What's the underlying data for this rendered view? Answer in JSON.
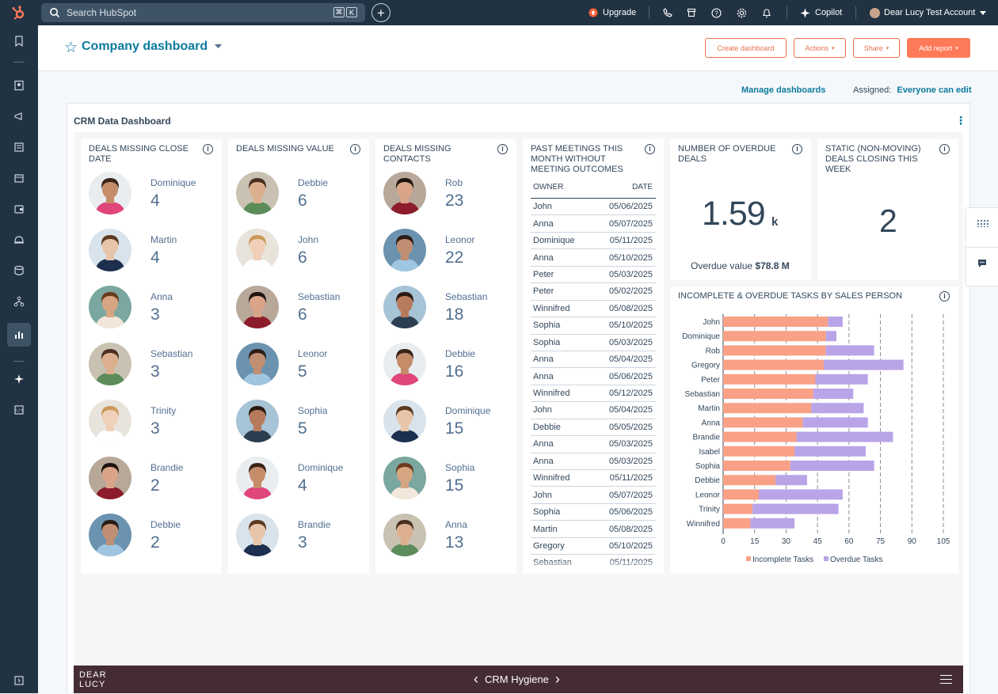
{
  "topbar": {
    "search_placeholder": "Search HubSpot",
    "kbd_cmd": "⌘",
    "kbd_k": "K",
    "plus": "+",
    "upgrade": "Upgrade",
    "copilot": "Copilot",
    "account": "Dear Lucy Test Account"
  },
  "header": {
    "star": "☆",
    "title": "Company dashboard",
    "buttons": {
      "create": "Create dashboard",
      "actions": "Actions",
      "share": "Share",
      "add_report": "Add report"
    }
  },
  "toolbar": {
    "manage": "Manage dashboards",
    "assigned_label": "Assigned:",
    "assigned_value": "Everyone can edit"
  },
  "dashboard": {
    "title": "CRM Data Dashboard",
    "info": "i",
    "kebab": "⋮",
    "cards": {
      "close_date": {
        "title": "Deals missing close date",
        "people": [
          {
            "name": "Dominique",
            "value": "4"
          },
          {
            "name": "Martin",
            "value": "4"
          },
          {
            "name": "Anna",
            "value": "3"
          },
          {
            "name": "Sebastian",
            "value": "3"
          },
          {
            "name": "Trinity",
            "value": "3"
          },
          {
            "name": "Brandie",
            "value": "2"
          },
          {
            "name": "Debbie",
            "value": "2"
          }
        ]
      },
      "value": {
        "title": "Deals missing value",
        "people": [
          {
            "name": "Debbie",
            "value": "6"
          },
          {
            "name": "John",
            "value": "6"
          },
          {
            "name": "Sebastian",
            "value": "6"
          },
          {
            "name": "Leonor",
            "value": "5"
          },
          {
            "name": "Sophia",
            "value": "5"
          },
          {
            "name": "Dominique",
            "value": "4"
          },
          {
            "name": "Brandie",
            "value": "3"
          }
        ]
      },
      "contacts": {
        "title": "Deals missing contacts",
        "people": [
          {
            "name": "Rob",
            "value": "23"
          },
          {
            "name": "Leonor",
            "value": "22"
          },
          {
            "name": "Sebastian",
            "value": "18"
          },
          {
            "name": "Debbie",
            "value": "16"
          },
          {
            "name": "Dominique",
            "value": "15"
          },
          {
            "name": "Sophia",
            "value": "15"
          },
          {
            "name": "Anna",
            "value": "13"
          }
        ]
      },
      "meetings": {
        "title": "Past meetings this month without meeting outcomes",
        "col_owner": "OWNER",
        "col_date": "DATE",
        "rows": [
          {
            "owner": "John",
            "date": "05/06/2025"
          },
          {
            "owner": "Anna",
            "date": "05/07/2025"
          },
          {
            "owner": "Dominique",
            "date": "05/11/2025"
          },
          {
            "owner": "Anna",
            "date": "05/10/2025"
          },
          {
            "owner": "Peter",
            "date": "05/03/2025"
          },
          {
            "owner": "Peter",
            "date": "05/02/2025"
          },
          {
            "owner": "Winnifred",
            "date": "05/08/2025"
          },
          {
            "owner": "Sophia",
            "date": "05/10/2025"
          },
          {
            "owner": "Sophia",
            "date": "05/03/2025"
          },
          {
            "owner": "Anna",
            "date": "05/04/2025"
          },
          {
            "owner": "Anna",
            "date": "05/06/2025"
          },
          {
            "owner": "Winnifred",
            "date": "05/12/2025"
          },
          {
            "owner": "John",
            "date": "05/04/2025"
          },
          {
            "owner": "Debbie",
            "date": "05/05/2025"
          },
          {
            "owner": "Anna",
            "date": "05/03/2025"
          },
          {
            "owner": "Anna",
            "date": "05/03/2025"
          },
          {
            "owner": "Winnifred",
            "date": "05/11/2025"
          },
          {
            "owner": "John",
            "date": "05/07/2025"
          },
          {
            "owner": "Sophia",
            "date": "05/06/2025"
          },
          {
            "owner": "Martin",
            "date": "05/08/2025"
          },
          {
            "owner": "Gregory",
            "date": "05/10/2025"
          },
          {
            "owner": "Sebastian",
            "date": "05/11/2025"
          }
        ]
      },
      "overdue": {
        "title": "Number of overdue deals",
        "value": "1.59",
        "suffix": "k",
        "overdue_label": "Overdue value",
        "overdue_value": "$78.8 M"
      },
      "static": {
        "title": "Static (non-moving) deals closing this week",
        "value": "2"
      },
      "tasks": {
        "title": "Incomplete & overdue tasks by sales person"
      }
    }
  },
  "chart_data": {
    "type": "bar",
    "orientation": "horizontal",
    "stacked": true,
    "title": "INCOMPLETE & OVERDUE TASKS BY SALES PERSON",
    "categories": [
      "John",
      "Dominique",
      "Rob",
      "Gregory",
      "Peter",
      "Sebastian",
      "Martin",
      "Anna",
      "Brandie",
      "Isabel",
      "Sophia",
      "Debbie",
      "Leonor",
      "Trinity",
      "Winnifred"
    ],
    "series": [
      {
        "name": "Incomplete Tasks",
        "color": "#f8a187",
        "values": [
          50,
          49,
          49,
          48,
          44,
          43,
          42,
          38,
          35,
          34,
          32,
          25,
          17,
          14,
          13
        ]
      },
      {
        "name": "Overdue Tasks",
        "color": "#b9a4e8",
        "values": [
          7,
          5,
          23,
          38,
          25,
          19,
          25,
          31,
          46,
          34,
          40,
          15,
          40,
          41,
          21
        ]
      }
    ],
    "xticks": [
      "0",
      "15",
      "30",
      "45",
      "60",
      "75",
      "90",
      "105"
    ],
    "xlim": [
      0,
      105
    ],
    "grid": true,
    "legend": "bottom"
  },
  "footer": {
    "logo_line1": "DEAR",
    "logo_line2": "LUCY",
    "prev": "‹",
    "page": "CRM Hygiene",
    "next": "›"
  },
  "colors": {
    "nav_bg": "#213343",
    "accent": "#ff7a59",
    "link": "#0b7a9d",
    "footer_bg": "#452c33"
  }
}
